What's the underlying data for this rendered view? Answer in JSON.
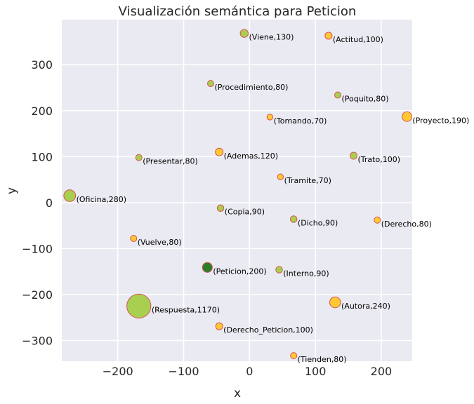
{
  "chart_data": {
    "type": "scatter",
    "title": "Visualización semántica para Peticion",
    "xlabel": "x",
    "ylabel": "y",
    "xlim": [
      -285,
      247
    ],
    "ylim": [
      -345,
      398
    ],
    "xticks": [
      -200,
      -100,
      0,
      100,
      200
    ],
    "yticks": [
      -300,
      -200,
      -100,
      0,
      100,
      200,
      300
    ],
    "grid": true,
    "colors": {
      "background": "#eaeaf2",
      "grid": "#ffffff",
      "yellow_fill": "#ffc933",
      "green_fill": "#a8cf4f",
      "main_fill": "#2a7d2a",
      "edge": "#d9534f"
    },
    "points": [
      {
        "word": "Viene",
        "value": 130,
        "x": -8,
        "y": 368,
        "color": "green",
        "label": "(Viene,130)"
      },
      {
        "word": "Actitud",
        "value": 100,
        "x": 120,
        "y": 363,
        "color": "yellow",
        "label": "(Actitud,100)"
      },
      {
        "word": "Procedimiento",
        "value": 80,
        "x": -59,
        "y": 259,
        "color": "green",
        "label": "(Procedimiento,80)"
      },
      {
        "word": "Poquito",
        "value": 80,
        "x": 134,
        "y": 234,
        "color": "green",
        "label": "(Poquito,80)"
      },
      {
        "word": "Tomando",
        "value": 70,
        "x": 31,
        "y": 186,
        "color": "yellow",
        "label": "(Tomando,70)"
      },
      {
        "word": "Proyecto",
        "value": 190,
        "x": 239,
        "y": 187,
        "color": "yellow",
        "label": "(Proyecto,190)"
      },
      {
        "word": "Presentar",
        "value": 80,
        "x": -168,
        "y": 98,
        "color": "green",
        "label": "(Presentar,80)"
      },
      {
        "word": "Ademas",
        "value": 120,
        "x": -46,
        "y": 110,
        "color": "yellow",
        "label": "(Ademas,120)"
      },
      {
        "word": "Trato",
        "value": 100,
        "x": 158,
        "y": 102,
        "color": "green",
        "label": "(Trato,100)"
      },
      {
        "word": "Tramite",
        "value": 70,
        "x": 47,
        "y": 56,
        "color": "yellow",
        "label": "(Tramite,70)"
      },
      {
        "word": "Oficina",
        "value": 280,
        "x": -273,
        "y": 15,
        "color": "green",
        "label": "(Oficina,280)"
      },
      {
        "word": "Copia",
        "value": 90,
        "x": -44,
        "y": -12,
        "color": "green",
        "label": "(Copia,90)"
      },
      {
        "word": "Dicho",
        "value": 90,
        "x": 67,
        "y": -36,
        "color": "green",
        "label": "(Dicho,90)"
      },
      {
        "word": "Derecho",
        "value": 80,
        "x": 194,
        "y": -38,
        "color": "yellow",
        "label": "(Derecho,80)"
      },
      {
        "word": "Vuelve",
        "value": 80,
        "x": -176,
        "y": -78,
        "color": "yellow",
        "label": "(Vuelve,80)"
      },
      {
        "word": "Peticion",
        "value": 200,
        "x": -64,
        "y": -141,
        "color": "main",
        "label": "(Peticion,200)"
      },
      {
        "word": "Interno",
        "value": 90,
        "x": 45,
        "y": -146,
        "color": "green",
        "label": "(Interno,90)"
      },
      {
        "word": "Respuesta",
        "value": 1170,
        "x": -168,
        "y": -225,
        "color": "green",
        "label": "(Respuesta,1170)"
      },
      {
        "word": "Autora",
        "value": 240,
        "x": 130,
        "y": -217,
        "color": "yellow",
        "label": "(Autora,240)"
      },
      {
        "word": "Derecho_Peticion",
        "value": 100,
        "x": -46,
        "y": -269,
        "color": "yellow",
        "label": "(Derecho_Peticion,100)"
      },
      {
        "word": "Tienden",
        "value": 80,
        "x": 67,
        "y": -333,
        "color": "yellow",
        "label": "(Tienden,80)"
      }
    ]
  }
}
